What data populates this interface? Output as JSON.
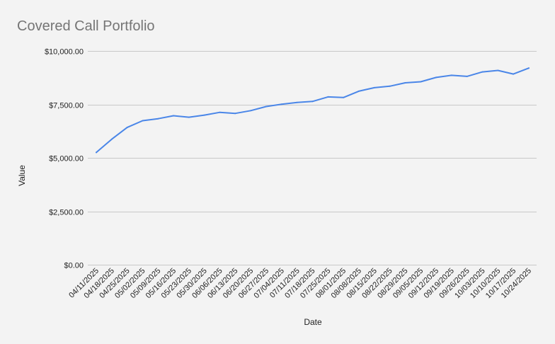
{
  "chart_data": {
    "type": "line",
    "title": "Covered Call Portfolio",
    "xlabel": "Date",
    "ylabel": "Value",
    "ylim": [
      0,
      10000
    ],
    "yticks": [
      0,
      2500,
      5000,
      7500,
      10000
    ],
    "ytick_labels": [
      "$0.00",
      "$2,500.00",
      "$5,000.00",
      "$7,500.00",
      "$10,000.00"
    ],
    "grid": true,
    "legend": "none",
    "colors": {
      "line": "#4a86e8",
      "grid": "#c8c8c8",
      "background": "#f3f3f3",
      "title": "#757575"
    },
    "categories": [
      "04/11/2025",
      "04/18/2025",
      "04/25/2025",
      "05/02/2025",
      "05/09/2025",
      "05/16/2025",
      "05/23/2025",
      "05/30/2025",
      "06/06/2025",
      "06/13/2025",
      "06/20/2025",
      "06/27/2025",
      "07/04/2025",
      "07/11/2025",
      "07/18/2025",
      "07/25/2025",
      "08/01/2025",
      "08/08/2025",
      "08/15/2025",
      "08/22/2025",
      "08/29/2025",
      "09/05/2025",
      "09/12/2025",
      "09/19/2025",
      "09/26/2025",
      "10/03/2025",
      "10/10/2025",
      "10/17/2025",
      "10/24/2025"
    ],
    "series": [
      {
        "values": [
          5250,
          5870,
          6420,
          6740,
          6830,
          6970,
          6900,
          7000,
          7130,
          7080,
          7210,
          7400,
          7510,
          7590,
          7640,
          7850,
          7820,
          8120,
          8280,
          8350,
          8510,
          8560,
          8760,
          8860,
          8810,
          9020,
          9090,
          8920,
          9200
        ]
      }
    ]
  }
}
